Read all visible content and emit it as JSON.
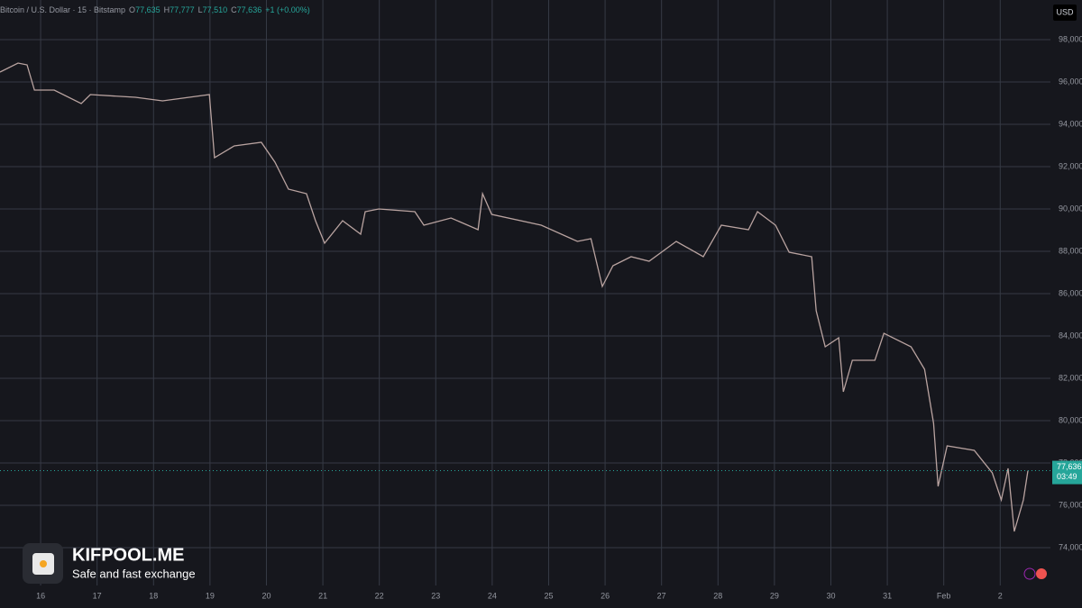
{
  "header": {
    "symbol": "Bitcoin / U.S. Dollar · 15 · Bitstamp",
    "ohlc": [
      {
        "key": "O",
        "value": "77,635"
      },
      {
        "key": "H",
        "value": "77,777"
      },
      {
        "key": "L",
        "value": "77,510"
      },
      {
        "key": "C",
        "value": "77,636"
      }
    ],
    "change": "+1 (+0.00%)"
  },
  "currency": "USD",
  "watermark": {
    "title": "KIFPOOL.ME",
    "subtitle": "Safe and fast exchange"
  },
  "chart_data": {
    "type": "line",
    "x": [
      15.28,
      15.6,
      15.76,
      15.89,
      16.24,
      16.72,
      16.88,
      17.68,
      18.16,
      18.99,
      19.08,
      19.43,
      19.91,
      20.15,
      20.39,
      20.71,
      20.87,
      21.03,
      21.35,
      21.67,
      21.75,
      21.99,
      22.63,
      22.79,
      23.27,
      23.75,
      23.83,
      23.99,
      24.87,
      25.51,
      25.75,
      25.95,
      26.14,
      26.46,
      26.78,
      27.26,
      27.74,
      28.06,
      28.54,
      28.7,
      29.02,
      29.26,
      29.66,
      29.74,
      29.9,
      30.14,
      30.22,
      30.38,
      30.78,
      30.94,
      31.42,
      31.66,
      31.82,
      31.9,
      32.06,
      32.54,
      32.86,
      33.02,
      33.14,
      33.25,
      33.41,
      33.49
    ],
    "series": [
      {
        "name": "BTCUSD",
        "color": "#b9a3a0",
        "values": [
          96468,
          96894,
          96809,
          95617,
          95617,
          94979,
          95404,
          95277,
          95106,
          95404,
          92426,
          92979,
          93149,
          92213,
          90936,
          90723,
          89447,
          88383,
          89447,
          88809,
          89872,
          90000,
          89872,
          89234,
          89574,
          89021,
          90723,
          89745,
          89234,
          88468,
          88596,
          86340,
          87319,
          87745,
          87532,
          88468,
          87745,
          89234,
          89021,
          89872,
          89234,
          87957,
          87745,
          85191,
          83489,
          83915,
          81362,
          82851,
          82851,
          84128,
          83489,
          82426,
          79872,
          76894,
          78809,
          78596,
          77532,
          76255,
          77745,
          74766,
          76255,
          77636
        ]
      }
    ],
    "xlim": [
      15.28,
      33.89
    ],
    "xticks": [
      16,
      17,
      18,
      19,
      20,
      21,
      22,
      23,
      24,
      25,
      26,
      27,
      28,
      29,
      30,
      31,
      {
        "value": 32,
        "label": "Feb"
      },
      {
        "value": 33,
        "label": "2"
      }
    ],
    "ylim": [
      72213,
      99872
    ],
    "yticks": [
      {
        "value": 74000,
        "label": "74,000"
      },
      {
        "value": 76000,
        "label": "76,000"
      },
      {
        "value": 78000,
        "label": "78,000"
      },
      {
        "value": 80000,
        "label": "80,000"
      },
      {
        "value": 82000,
        "label": "82,000"
      },
      {
        "value": 84000,
        "label": "84,000"
      },
      {
        "value": 86000,
        "label": "86,000"
      },
      {
        "value": 88000,
        "label": "88,000"
      },
      {
        "value": 90000,
        "label": "90,000"
      },
      {
        "value": 92000,
        "label": "92,000"
      },
      {
        "value": 94000,
        "label": "94,000"
      },
      {
        "value": 96000,
        "label": "96,000"
      },
      {
        "value": 98000,
        "label": "98,000"
      }
    ],
    "grid": true,
    "price_label": {
      "value": 77636,
      "label": "77,636"
    },
    "countdown": "03:49"
  }
}
